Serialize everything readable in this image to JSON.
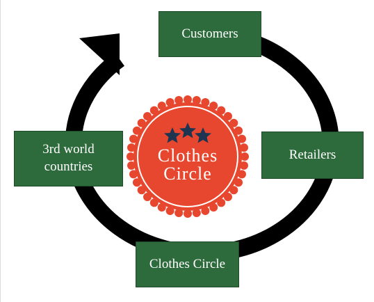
{
  "nodes": {
    "customers": "Customers",
    "retailers": "Retailers",
    "clothes_circle": "Clothes Circle",
    "third_world_line1": "3rd world",
    "third_world_line2": "countries"
  },
  "logo": {
    "line1": "Clothes",
    "line2": "Circle"
  },
  "colors": {
    "box_fill": "#2e6b3c",
    "ring": "#000000",
    "badge_red": "#e8472f",
    "star_navy": "#1e3552"
  }
}
